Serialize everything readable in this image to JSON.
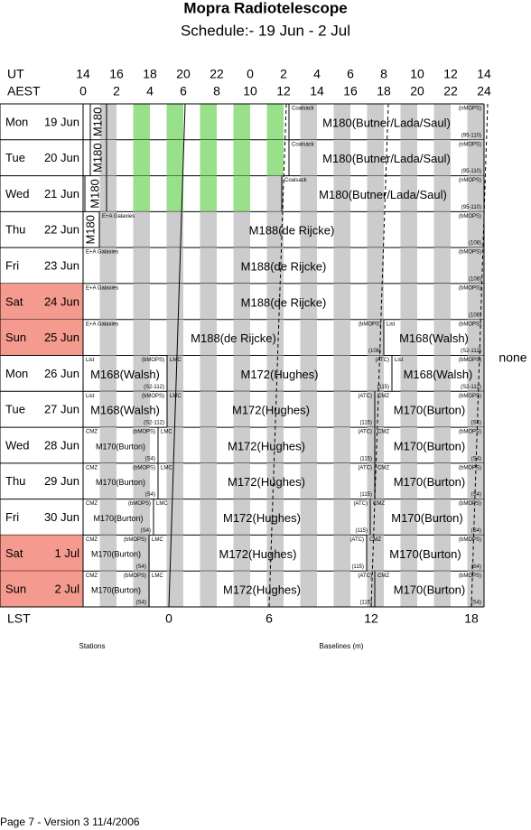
{
  "header": {
    "title": "Mopra Radiotelescope",
    "subtitle": "Schedule:- 19 Jun - 2  Jul"
  },
  "axis": {
    "ut_label": "UT",
    "ut": [
      14,
      16,
      18,
      20,
      22,
      0,
      2,
      4,
      6,
      8,
      10,
      12,
      14
    ],
    "aest_label": "AEST",
    "aest": [
      0,
      2,
      4,
      6,
      8,
      10,
      12,
      14,
      16,
      18,
      20,
      22,
      24
    ],
    "lst_label": "LST",
    "lst": [
      0,
      6,
      12,
      18
    ]
  },
  "rows": [
    {
      "day": "Mon",
      "date": "19 Jun",
      "weekend": false,
      "blocks": [
        {
          "project": "M180",
          "vertical": true
        },
        {
          "source": "Coalsack",
          "project": "M180(Butner/Lada/Saul)",
          "backend": "(nMOPS)",
          "config": "(95-110)"
        }
      ]
    },
    {
      "day": "Tue",
      "date": "20 Jun",
      "weekend": false,
      "blocks": [
        {
          "project": "M180",
          "vertical": true
        },
        {
          "source": "Coalsack",
          "project": "M180(Butner/Lada/Saul)",
          "backend": "(nMOPS)",
          "config": "(95-110)"
        }
      ]
    },
    {
      "day": "Wed",
      "date": "21 Jun",
      "weekend": false,
      "blocks": [
        {
          "project": "M180",
          "vertical": true
        },
        {
          "source": "Coalsack",
          "project": "M180(Butner/Lada/Saul)",
          "backend": "(nMOPS)",
          "config": "(95-110)"
        }
      ]
    },
    {
      "day": "Thu",
      "date": "22 Jun",
      "weekend": false,
      "blocks": [
        {
          "project": "M180",
          "vertical": true
        },
        {
          "source": "E+A Galaxies",
          "project": "M188(de Rijcke)",
          "backend": "(bMOPS)",
          "config": "(108)"
        }
      ]
    },
    {
      "day": "Fri",
      "date": "23 Jun",
      "weekend": false,
      "blocks": [
        {
          "source": "E+A Galaxies",
          "project": "M188(de Rijcke)",
          "backend": "(bMOPS)",
          "config": "(108)"
        }
      ]
    },
    {
      "day": "Sat",
      "date": "24 Jun",
      "weekend": true,
      "blocks": [
        {
          "source": "E+A Galaxies",
          "project": "M188(de Rijcke)",
          "backend": "(bMOPS)",
          "config": "(108)"
        }
      ]
    },
    {
      "day": "Sun",
      "date": "25 Jun",
      "weekend": true,
      "blocks": [
        {
          "source": "E+A Galaxies",
          "project": "M188(de Rijcke)",
          "backend": "(bMOPS)",
          "config": "(108)"
        },
        {
          "source": "List",
          "project": "M168(Walsh)",
          "backend": "(bMOPS)",
          "config": "(S2-112)"
        }
      ]
    },
    {
      "day": "Mon",
      "date": "26 Jun",
      "weekend": false,
      "blocks": [
        {
          "source": "List",
          "project": "M168(Walsh)",
          "backend": "(bMOPS)",
          "config": "(S2-112)"
        },
        {
          "source": "LMC",
          "project": "M172(Hughes)",
          "backend": "(ATC)",
          "config": "(115)"
        },
        {
          "source": "List",
          "project": "M168(Walsh)",
          "backend": "(bMOPS)",
          "config": "(S2-112)"
        }
      ]
    },
    {
      "day": "Tue",
      "date": "27 Jun",
      "weekend": false,
      "blocks": [
        {
          "source": "List",
          "project": "M168(Walsh)",
          "backend": "(bMOPS)",
          "config": "(S2-112)"
        },
        {
          "source": "LMC",
          "project": "M172(Hughes)",
          "backend": "(ATC)",
          "config": "(115)"
        },
        {
          "source": "CMZ",
          "project": "M170(Burton)",
          "backend": "(bMOPS)",
          "config": "(S4)"
        }
      ]
    },
    {
      "day": "Wed",
      "date": "28 Jun",
      "weekend": false,
      "blocks": [
        {
          "source": "CMZ",
          "project": "M170(Burton)",
          "backend": "(bMOPS)",
          "config": "(S4)"
        },
        {
          "source": "LMC",
          "project": "M172(Hughes)",
          "backend": "(ATC)",
          "config": "(115)"
        },
        {
          "source": "CMZ",
          "project": "M170(Burton)",
          "backend": "(bMOPS)",
          "config": "(S4)"
        }
      ]
    },
    {
      "day": "Thu",
      "date": "29 Jun",
      "weekend": false,
      "blocks": [
        {
          "source": "CMZ",
          "project": "M170(Burton)",
          "backend": "(bMOPS)",
          "config": "(S4)"
        },
        {
          "source": "LMC",
          "project": "M172(Hughes)",
          "backend": "(ATC)",
          "config": "(115)"
        },
        {
          "source": "CMZ",
          "project": "M170(Burton)",
          "backend": "(bMOPS)",
          "config": "(S4)"
        }
      ]
    },
    {
      "day": "Fri",
      "date": "30 Jun",
      "weekend": false,
      "blocks": [
        {
          "source": "CMZ",
          "project": "M170(Burton)",
          "backend": "(bMOPS)",
          "config": "(S4)"
        },
        {
          "source": "LMC",
          "project": "M172(Hughes)",
          "backend": "(ATC)",
          "config": "(115)"
        },
        {
          "source": "CMZ",
          "project": "M170(Burton)",
          "backend": "(bMOPS)",
          "config": "(S4)"
        }
      ]
    },
    {
      "day": "Sat",
      "date": "1  Jul",
      "weekend": true,
      "blocks": [
        {
          "source": "CMZ",
          "project": "M170(Burton)",
          "backend": "(bMOPS)",
          "config": "(S4)"
        },
        {
          "source": "LMC",
          "project": "M172(Hughes)",
          "backend": "(ATC)",
          "config": "(115)"
        },
        {
          "source": "CMZ",
          "project": "M170(Burton)",
          "backend": "(bMOPS)",
          "config": "(S4)"
        }
      ]
    },
    {
      "day": "Sun",
      "date": "2  Jul",
      "weekend": true,
      "blocks": [
        {
          "source": "CMZ",
          "project": "M170(Burton)",
          "backend": "(bMOPS)",
          "config": "(S4)"
        },
        {
          "source": "LMC",
          "project": "M172(Hughes)",
          "backend": "(ATC)",
          "config": "(115)"
        },
        {
          "source": "CMZ",
          "project": "M170(Burton)",
          "backend": "(bMOPS)",
          "config": "(S4)"
        }
      ]
    }
  ],
  "note": "none",
  "footer": {
    "stations": "Stations",
    "baselines": "Baselines (m)",
    "page": "Page 7 - Version 3  11/4/2006"
  }
}
